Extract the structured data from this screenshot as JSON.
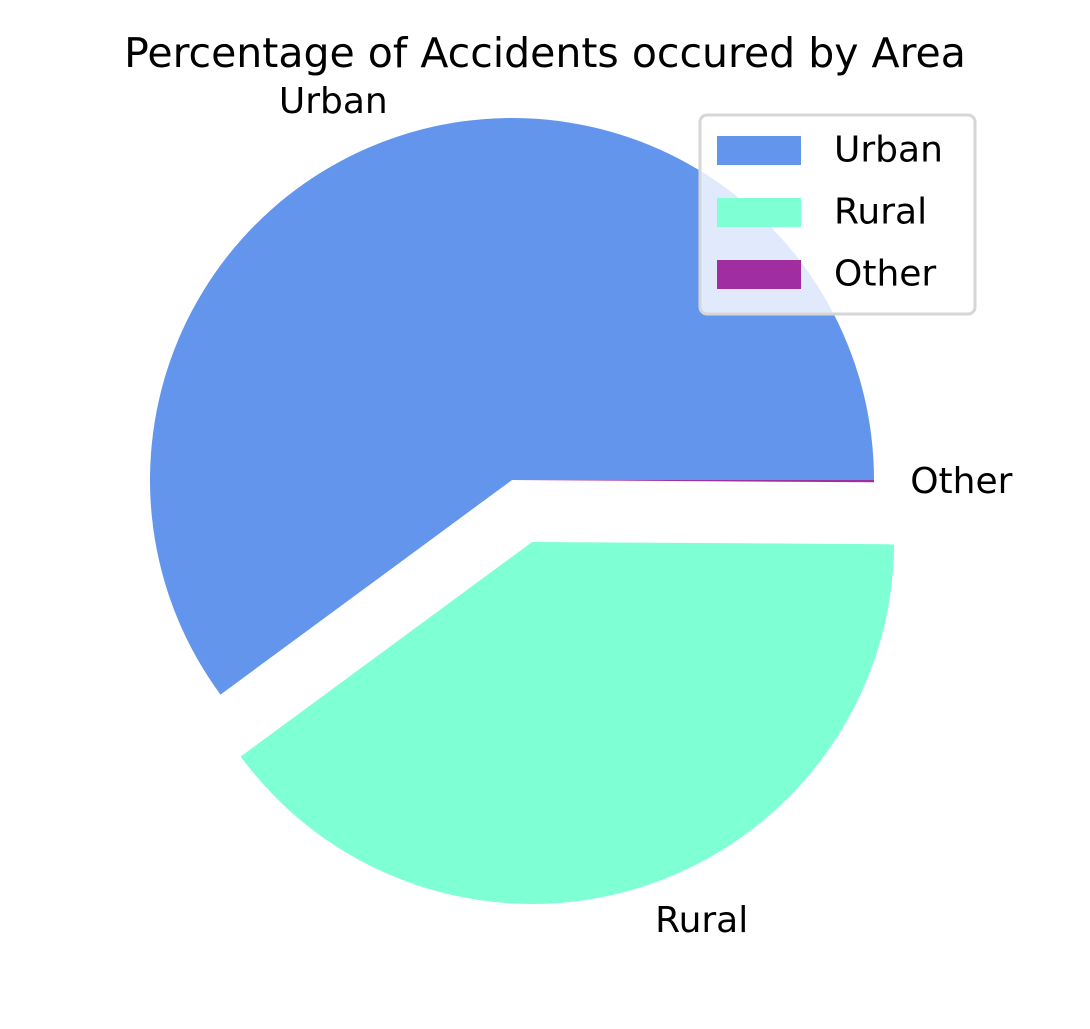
{
  "chart_data": {
    "type": "pie",
    "title": "Percentage of Accidents occured by Area",
    "slices": [
      {
        "label": "Urban",
        "value": 60.1,
        "color": "#6495ED",
        "exploded": false
      },
      {
        "label": "Rural",
        "value": 39.8,
        "color": "#7FFFD4",
        "exploded": true
      },
      {
        "label": "Other",
        "value": 0.1,
        "color": "#A12EA1",
        "exploded": false
      }
    ],
    "legend": {
      "position": "upper right",
      "entries": [
        "Urban",
        "Rural",
        "Other"
      ]
    }
  }
}
